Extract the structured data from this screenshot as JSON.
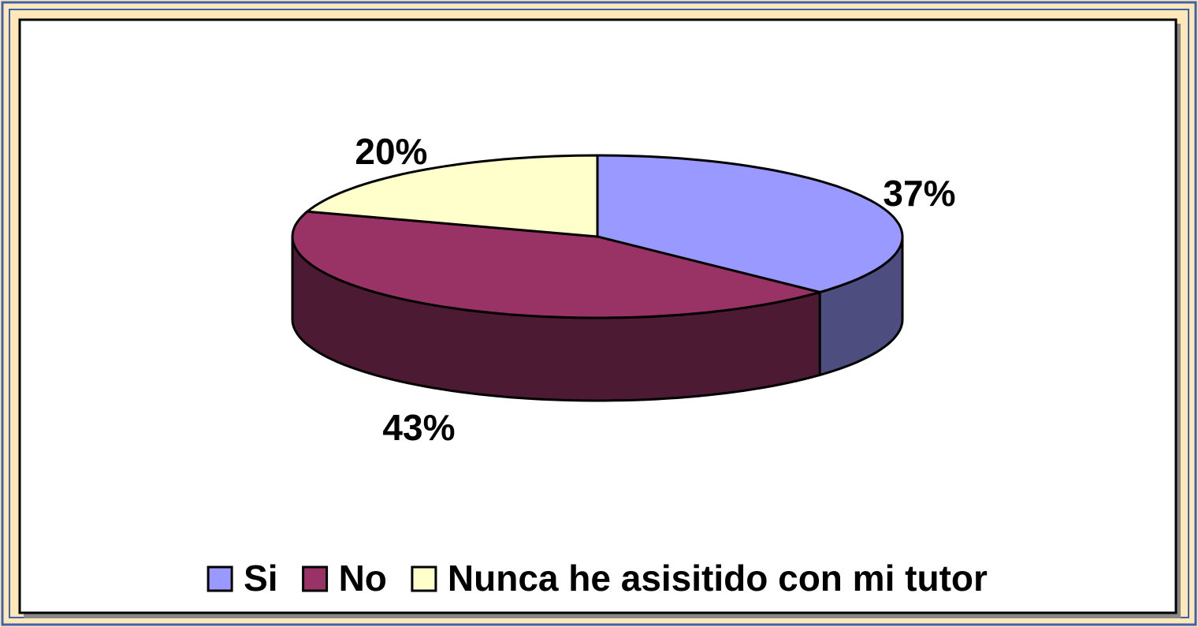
{
  "chart_data": {
    "type": "pie3d",
    "categories": [
      "Si",
      "No",
      "Nunca he asisitido con mi tutor"
    ],
    "values": [
      37,
      43,
      20
    ],
    "value_labels": [
      "37%",
      "43%",
      "20%"
    ],
    "colors": [
      "#9999ff",
      "#993366",
      "#ffffcc"
    ],
    "legend": "bottom"
  }
}
